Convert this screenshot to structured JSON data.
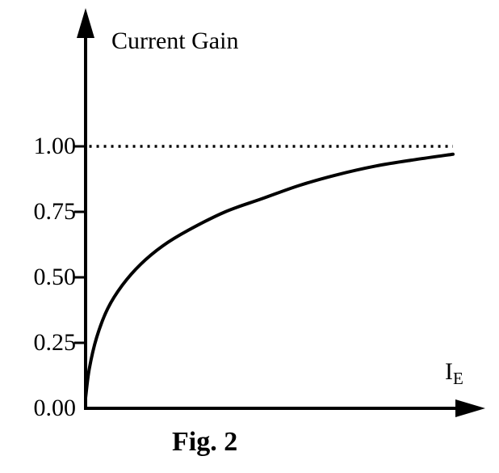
{
  "chart_data": {
    "type": "line",
    "title": "Current Gain",
    "xlabel": "IE",
    "xlabel_main": "I",
    "xlabel_sub": "E",
    "ylabel": "",
    "caption": "Fig. 2",
    "yticks": [
      0.0,
      0.25,
      0.5,
      0.75,
      1.0
    ],
    "ytick_labels": [
      "0.00",
      "0.25",
      "0.50",
      "0.75",
      "1.00"
    ],
    "ylim": [
      0,
      1.15
    ],
    "x_range_normalized": [
      0,
      1
    ],
    "asymptote": 1.0,
    "asymptote_style": "dotted",
    "grid": false,
    "legend": "none",
    "stroke_color": "#000000",
    "background_color": "#ffffff",
    "series": [
      {
        "name": "current-gain-curve",
        "x": [
          0,
          0.01,
          0.03,
          0.06,
          0.1,
          0.15,
          0.21,
          0.28,
          0.38,
          0.48,
          0.58,
          0.68,
          0.79,
          0.9,
          1.0
        ],
        "y": [
          0.04,
          0.15,
          0.27,
          0.38,
          0.47,
          0.55,
          0.62,
          0.68,
          0.75,
          0.8,
          0.85,
          0.89,
          0.925,
          0.95,
          0.97
        ]
      }
    ]
  }
}
